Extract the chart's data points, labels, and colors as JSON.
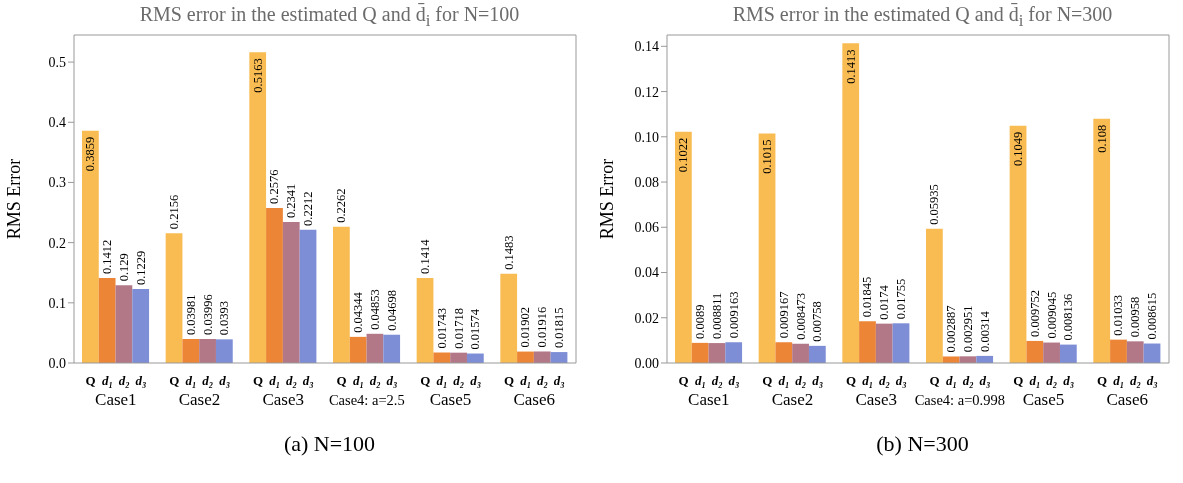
{
  "chart_data": [
    {
      "type": "bar",
      "title": "RMS error in the estimated Q and d̄$_{i}$ for N=100",
      "ylabel": "RMS Error",
      "categories": [
        "Case1",
        "Case2",
        "Case3",
        "Case4: a=2.5",
        "Case5",
        "Case6"
      ],
      "series": [
        {
          "name": "Q",
          "color": "#f9bc52",
          "values": [
            0.3859,
            0.2156,
            0.5163,
            0.2262,
            0.1414,
            0.1483
          ]
        },
        {
          "name": "d₁",
          "color": "#ec8535",
          "values": [
            0.1412,
            0.03981,
            0.2576,
            0.04344,
            0.01743,
            0.01902
          ]
        },
        {
          "name": "d₂",
          "color": "#b27888",
          "values": [
            0.129,
            0.03996,
            0.2341,
            0.04853,
            0.01718,
            0.01916
          ]
        },
        {
          "name": "d₃",
          "color": "#7d8ed6",
          "values": [
            0.1229,
            0.0393,
            0.2212,
            0.04698,
            0.01574,
            0.01815
          ]
        }
      ],
      "ylim": [
        0,
        0.545
      ],
      "yticks": [
        {
          "value": 0,
          "label": "0.0"
        },
        {
          "value": 0.1,
          "label": "0.1"
        },
        {
          "value": 0.2,
          "label": "0.2"
        },
        {
          "value": 0.3,
          "label": "0.3"
        },
        {
          "value": 0.4,
          "label": "0.4"
        },
        {
          "value": 0.5,
          "label": "0.5"
        }
      ],
      "data_labels": true,
      "annotations": [
        "(a) N=100"
      ]
    },
    {
      "type": "bar",
      "title": "RMS error in the estimated Q and d̄$_{i}$ for N=300",
      "ylabel": "RMS Error",
      "categories": [
        "Case1",
        "Case2",
        "Case3",
        "Case4: a=0.998",
        "Case5",
        "Case6"
      ],
      "series": [
        {
          "name": "Q",
          "color": "#f9bc52",
          "values": [
            0.1022,
            0.1015,
            0.1413,
            0.05935,
            0.1049,
            0.108
          ]
        },
        {
          "name": "d₁",
          "color": "#ec8535",
          "values": [
            0.0089,
            0.009167,
            0.01845,
            0.002887,
            0.009752,
            0.01033
          ]
        },
        {
          "name": "d₂",
          "color": "#b27888",
          "values": [
            0.008811,
            0.008473,
            0.0174,
            0.002951,
            0.009045,
            0.00958
          ]
        },
        {
          "name": "d₃",
          "color": "#7d8ed6",
          "values": [
            0.009163,
            0.00758,
            0.01755,
            0.00314,
            0.008136,
            0.008615
          ]
        }
      ],
      "ylim": [
        0,
        0.145
      ],
      "yticks": [
        {
          "value": 0,
          "label": "0.00"
        },
        {
          "value": 0.02,
          "label": "0.02"
        },
        {
          "value": 0.04,
          "label": "0.04"
        },
        {
          "value": 0.06,
          "label": "0.06"
        },
        {
          "value": 0.08,
          "label": "0.08"
        },
        {
          "value": 0.1,
          "label": "0.10"
        },
        {
          "value": 0.12,
          "label": "0.12"
        },
        {
          "value": 0.14,
          "label": "0.14"
        }
      ],
      "data_labels": true,
      "annotations": [
        "(b) N=300"
      ]
    }
  ]
}
